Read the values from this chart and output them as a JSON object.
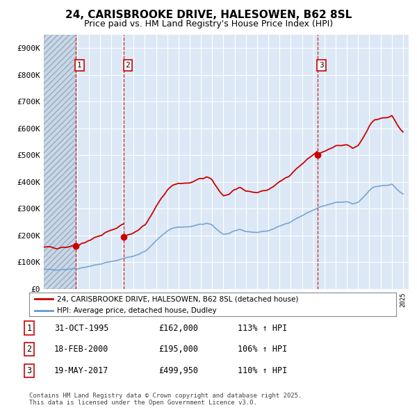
{
  "title": "24, CARISBROOKE DRIVE, HALESOWEN, B62 8SL",
  "subtitle": "Price paid vs. HM Land Registry's House Price Index (HPI)",
  "title_fontsize": 11,
  "subtitle_fontsize": 9,
  "ylim": [
    0,
    950000
  ],
  "yticks": [
    0,
    100000,
    200000,
    300000,
    400000,
    500000,
    600000,
    700000,
    800000,
    900000
  ],
  "ytick_labels": [
    "£0",
    "£100K",
    "£200K",
    "£300K",
    "£400K",
    "£500K",
    "£600K",
    "£700K",
    "£800K",
    "£900K"
  ],
  "xlim_start": 1993.0,
  "xlim_end": 2025.5,
  "chart_bg": "#dce8f5",
  "hatch_bg": "#c8d8e8",
  "transactions": [
    {
      "num": 1,
      "date": "31-OCT-1995",
      "price": 162000,
      "year": 1995.833,
      "pct": "113%",
      "dir": "↑"
    },
    {
      "num": 2,
      "date": "18-FEB-2000",
      "price": 195000,
      "year": 2000.125,
      "pct": "106%",
      "dir": "↑"
    },
    {
      "num": 3,
      "date": "19-MAY-2017",
      "price": 499950,
      "year": 2017.375,
      "pct": "110%",
      "dir": "↑"
    }
  ],
  "red_color": "#cc0000",
  "blue_color": "#6699cc",
  "grid_color": "#ffffff",
  "bg_color": "#ffffff",
  "legend_label_red": "24, CARISBROOKE DRIVE, HALESOWEN, B62 8SL (detached house)",
  "legend_label_blue": "HPI: Average price, detached house, Dudley",
  "footer": "Contains HM Land Registry data © Crown copyright and database right 2025.\nThis data is licensed under the Open Government Licence v3.0."
}
